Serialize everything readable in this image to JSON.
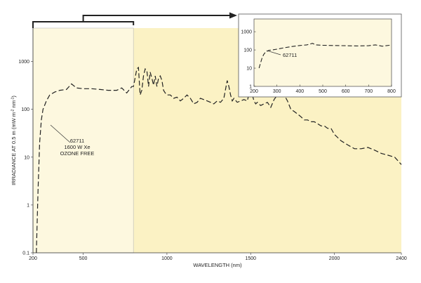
{
  "chart_data": [
    {
      "type": "line",
      "title": "",
      "xlabel": "WAVELENGTH (nm)",
      "ylabel": "IRRADIANCE AT 0.5 m (mW m⁻² nm⁻¹)",
      "ylabel_parts": [
        "IRRADIANCE AT 0.5 m (mW m",
        "-2",
        " nm",
        "-1",
        ")"
      ],
      "x_ticks": [
        "200",
        "500",
        "1000",
        "1500",
        "2000",
        "2400"
      ],
      "x_tick_values": [
        200,
        500,
        1000,
        1500,
        2000,
        2400
      ],
      "y_ticks": [
        "0.1",
        "1",
        "10",
        "100",
        "1000"
      ],
      "y_tick_values": [
        0.1,
        1,
        10,
        100,
        1000
      ],
      "xlim": [
        200,
        2400
      ],
      "ylim": [
        0.1,
        5000
      ],
      "y_scale": "log",
      "highlight_region": [
        200,
        800
      ],
      "background_colors": {
        "highlight": "#fdf8df",
        "rest": "#fbf2c4"
      },
      "line_style": "dashed",
      "annotation": [
        "62711",
        "1600 W Xe",
        "OZONE FREE"
      ],
      "series": [
        {
          "name": "",
          "x": [
            220,
            230,
            240,
            250,
            260,
            280,
            300,
            330,
            360,
            400,
            430,
            460,
            500,
            550,
            600,
            650,
            700,
            730,
            760,
            790,
            800,
            820,
            830,
            840,
            850,
            860,
            870,
            880,
            890,
            900,
            910,
            920,
            930,
            940,
            950,
            960,
            970,
            980,
            990,
            1000,
            1020,
            1040,
            1060,
            1080,
            1100,
            1120,
            1140,
            1160,
            1180,
            1200,
            1220,
            1240,
            1260,
            1280,
            1300,
            1320,
            1340,
            1360,
            1370,
            1380,
            1390,
            1400,
            1420,
            1440,
            1460,
            1480,
            1500,
            1510,
            1520,
            1530,
            1540,
            1560,
            1580,
            1600,
            1620,
            1640,
            1660,
            1680,
            1700,
            1720,
            1740,
            1760,
            1780,
            1800,
            1820,
            1840,
            1860,
            1880,
            1900,
            1920,
            1940,
            1960,
            1980,
            2000,
            2040,
            2080,
            2120,
            2160,
            2200,
            2240,
            2280,
            2320,
            2360,
            2400
          ],
          "y": [
            0.1,
            2,
            20,
            60,
            100,
            150,
            200,
            230,
            250,
            260,
            340,
            280,
            270,
            270,
            260,
            250,
            250,
            280,
            220,
            300,
            300,
            700,
            750,
            200,
            250,
            500,
            700,
            650,
            300,
            600,
            450,
            320,
            500,
            300,
            450,
            500,
            400,
            250,
            220,
            200,
            200,
            170,
            180,
            150,
            170,
            200,
            170,
            130,
            140,
            170,
            160,
            150,
            140,
            130,
            150,
            140,
            170,
            400,
            300,
            200,
            150,
            170,
            140,
            150,
            160,
            150,
            300,
            200,
            150,
            130,
            140,
            120,
            130,
            140,
            110,
            160,
            200,
            250,
            200,
            150,
            100,
            90,
            80,
            70,
            60,
            60,
            55,
            55,
            50,
            45,
            45,
            40,
            40,
            30,
            22,
            18,
            15,
            15,
            16,
            14,
            12,
            11,
            10,
            7
          ]
        }
      ]
    },
    {
      "type": "line",
      "title": "",
      "xlabel": "",
      "ylabel": "",
      "x_ticks": [
        "200",
        "300",
        "400",
        "500",
        "600",
        "700",
        "800"
      ],
      "x_tick_values": [
        200,
        300,
        400,
        500,
        600,
        700,
        800
      ],
      "y_ticks": [
        "1",
        "10",
        "100",
        "1000"
      ],
      "y_tick_values": [
        1,
        10,
        100,
        1000
      ],
      "xlim": [
        200,
        800
      ],
      "ylim": [
        1,
        5000
      ],
      "y_scale": "log",
      "line_style": "dashed",
      "annotation": [
        "62711"
      ],
      "series": [
        {
          "name": "",
          "x": [
            222,
            228,
            235,
            242,
            250,
            258,
            265,
            280,
            300,
            330,
            360,
            400,
            430,
            445,
            455,
            470,
            500,
            550,
            600,
            650,
            700,
            730,
            760,
            790,
            800
          ],
          "y": [
            10,
            18,
            35,
            55,
            75,
            85,
            95,
            100,
            110,
            130,
            150,
            175,
            190,
            210,
            230,
            190,
            180,
            175,
            170,
            165,
            170,
            190,
            160,
            180,
            190
          ]
        }
      ]
    }
  ]
}
